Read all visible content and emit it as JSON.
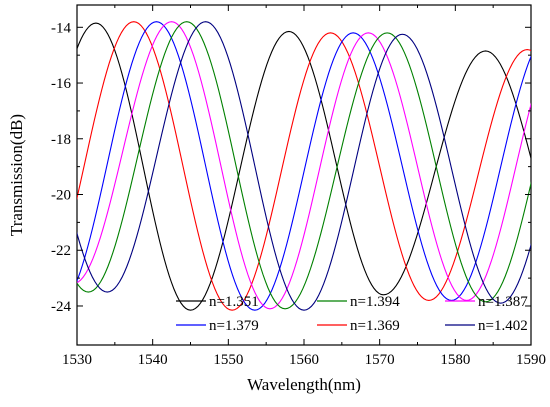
{
  "chart_data": {
    "type": "line",
    "xlabel": "Wavelength(nm)",
    "ylabel": "Transmission(dB)",
    "xlim": [
      1530,
      1590
    ],
    "ylim": [
      -25.4,
      -13.2
    ],
    "x_ticks": [
      1530,
      1540,
      1550,
      1560,
      1570,
      1580,
      1590
    ],
    "x_tick_labels": [
      "1530",
      "1540",
      "1550",
      "1560",
      "1570",
      "1580",
      "1590"
    ],
    "y_ticks": [
      -24,
      -22,
      -20,
      -18,
      -16,
      -14
    ],
    "y_tick_labels": [
      "-24",
      "-22",
      "-20",
      "-18",
      "-16",
      "-14"
    ],
    "grid": false,
    "legend_position": "bottom-right",
    "series": [
      {
        "name": "n=1.351",
        "color": "#000000",
        "maxima": [
          [
            1532.5,
            -13.85
          ],
          [
            1558.0,
            -14.15
          ],
          [
            1584.0,
            -14.85
          ]
        ],
        "minima": [
          [
            1545.0,
            -24.15
          ],
          [
            1570.5,
            -23.6
          ]
        ]
      },
      {
        "name": "n=1.369",
        "color": "#ff0000",
        "maxima": [
          [
            1537.5,
            -13.8
          ],
          [
            1563.5,
            -14.2
          ],
          [
            1589.5,
            -14.8
          ]
        ],
        "minima": [
          [
            1524.5,
            -24.0
          ],
          [
            1550.5,
            -24.15
          ],
          [
            1576.5,
            -23.8
          ]
        ]
      },
      {
        "name": "n=1.379",
        "color": "#0000ff",
        "maxima": [
          [
            1540.5,
            -13.8
          ],
          [
            1566.5,
            -14.2
          ]
        ],
        "minima": [
          [
            1527.5,
            -24.0
          ],
          [
            1553.5,
            -24.15
          ],
          [
            1579.5,
            -23.8
          ]
        ]
      },
      {
        "name": "n=1.387",
        "color": "#ff00ff",
        "maxima": [
          [
            1542.5,
            -13.8
          ],
          [
            1568.5,
            -14.2
          ]
        ],
        "minima": [
          [
            1529.5,
            -23.2
          ],
          [
            1555.5,
            -24.1
          ],
          [
            1581.5,
            -23.8
          ]
        ]
      },
      {
        "name": "n=1.394",
        "color": "#008000",
        "maxima": [
          [
            1544.5,
            -13.8
          ],
          [
            1571.0,
            -14.2
          ]
        ],
        "minima": [
          [
            1531.5,
            -23.5
          ],
          [
            1557.5,
            -24.1
          ],
          [
            1584.0,
            -23.85
          ]
        ]
      },
      {
        "name": "n=1.402",
        "color": "#000080",
        "maxima": [
          [
            1547.0,
            -13.8
          ],
          [
            1573.0,
            -14.25
          ]
        ],
        "minima": [
          [
            1534.0,
            -23.5
          ],
          [
            1560.0,
            -24.15
          ],
          [
            1586.0,
            -23.9
          ]
        ]
      }
    ]
  }
}
